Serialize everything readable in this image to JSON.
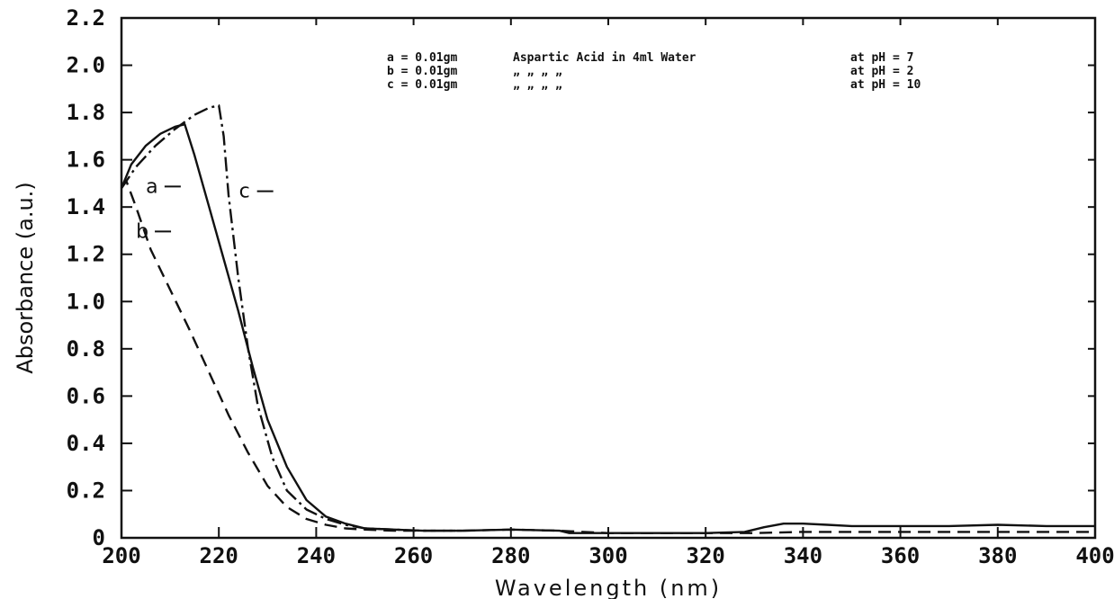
{
  "chart_data": {
    "type": "line",
    "xlabel": "Wavelength (nm)",
    "ylabel": "Absorbance (a.u.)",
    "xlim": [
      200,
      400
    ],
    "ylim": [
      0,
      2.2
    ],
    "x_ticks": [
      "200",
      "220",
      "240",
      "260",
      "280",
      "300",
      "320",
      "340",
      "360",
      "380",
      "400"
    ],
    "y_ticks": [
      "0",
      "0.2",
      "0.4",
      "0.6",
      "0.8",
      "1.0",
      "1.2",
      "1.4",
      "1.6",
      "1.8",
      "2.0",
      "2.2"
    ],
    "grid": false,
    "legend_position": "top-right",
    "legend_lines": [
      {
        "key": "a",
        "lhs": "a = 0.01gm",
        "desc": "Aspartic Acid in 4ml Water",
        "ph": "at pH = 7"
      },
      {
        "key": "b",
        "lhs": "b = 0.01gm",
        "desc": "„            „     „     „",
        "ph": "at pH = 2"
      },
      {
        "key": "c",
        "lhs": "c = 0.01gm",
        "desc": "„            „     „     „",
        "ph": "at pH = 10"
      }
    ],
    "series": [
      {
        "name": "a",
        "style": "solid",
        "label_at": [
          207,
          1.46
        ],
        "x": [
          200,
          202,
          205,
          208,
          211,
          213,
          215,
          218,
          221,
          224,
          227,
          230,
          234,
          238,
          242,
          246,
          250,
          256,
          262,
          270,
          280,
          290,
          292,
          300,
          310,
          320,
          328,
          332,
          336,
          340,
          345,
          350,
          360,
          370,
          380,
          390,
          400
        ],
        "y": [
          1.48,
          1.58,
          1.66,
          1.71,
          1.74,
          1.75,
          1.62,
          1.4,
          1.18,
          0.96,
          0.72,
          0.5,
          0.3,
          0.16,
          0.09,
          0.06,
          0.04,
          0.035,
          0.03,
          0.03,
          0.035,
          0.03,
          0.02,
          0.02,
          0.02,
          0.02,
          0.025,
          0.045,
          0.06,
          0.06,
          0.055,
          0.05,
          0.05,
          0.05,
          0.055,
          0.05,
          0.05
        ]
      },
      {
        "name": "b",
        "style": "dashed",
        "label_at": [
          205,
          1.27
        ],
        "x": [
          200,
          201,
          203,
          206,
          210,
          214,
          218,
          222,
          226,
          230,
          234,
          238,
          242,
          246,
          250,
          256,
          262,
          270,
          280,
          290,
          300,
          310,
          320,
          330,
          340,
          350,
          360,
          370,
          380,
          390,
          400
        ],
        "y": [
          1.48,
          1.51,
          1.4,
          1.22,
          1.05,
          0.88,
          0.7,
          0.52,
          0.36,
          0.22,
          0.13,
          0.08,
          0.055,
          0.04,
          0.035,
          0.03,
          0.03,
          0.03,
          0.035,
          0.03,
          0.02,
          0.02,
          0.02,
          0.02,
          0.025,
          0.025,
          0.025,
          0.025,
          0.025,
          0.025,
          0.025
        ]
      },
      {
        "name": "c",
        "style": "dashdot",
        "label_at": [
          226,
          1.44
        ],
        "x": [
          200,
          203,
          207,
          211,
          215,
          218,
          220,
          221,
          222,
          224,
          226,
          228,
          231,
          234,
          238,
          242,
          246,
          250,
          256,
          262,
          270
        ],
        "y": [
          1.48,
          1.57,
          1.66,
          1.73,
          1.79,
          1.82,
          1.83,
          1.7,
          1.45,
          1.1,
          0.8,
          0.56,
          0.34,
          0.2,
          0.12,
          0.08,
          0.055,
          0.04,
          0.035,
          0.03,
          0.03
        ]
      }
    ]
  }
}
